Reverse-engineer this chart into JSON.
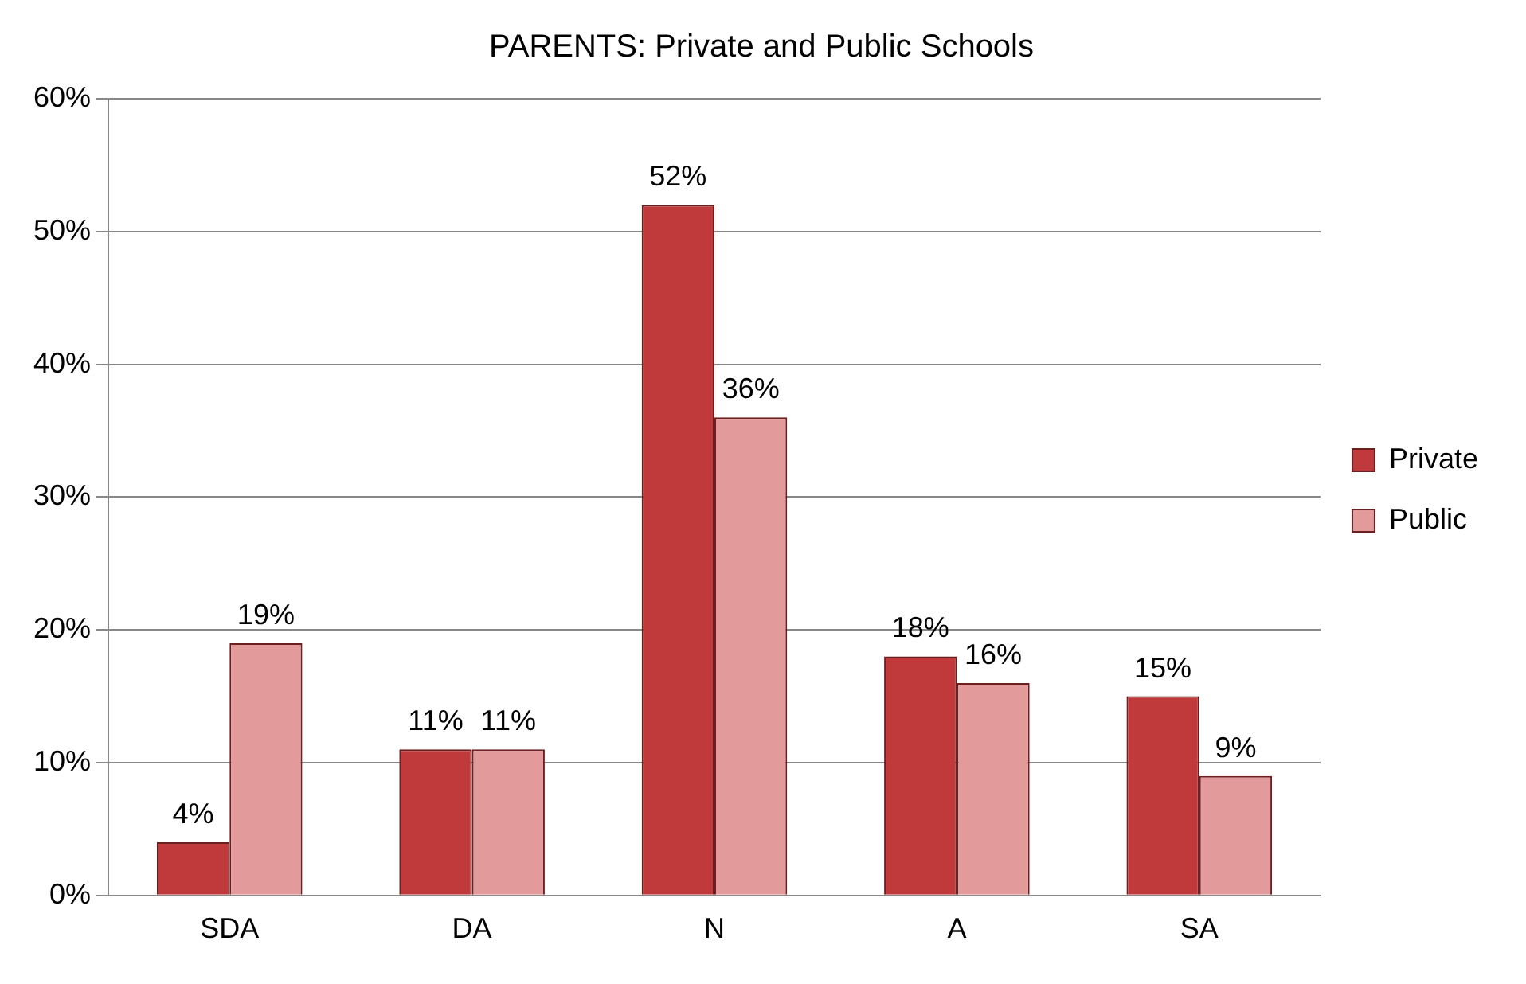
{
  "chart_data": {
    "type": "bar",
    "title": "PARENTS: Private and Public Schools",
    "categories": [
      "SDA",
      "DA",
      "N",
      "A",
      "SA"
    ],
    "series": [
      {
        "name": "Private",
        "color": "#c0393b",
        "values": [
          4,
          11,
          52,
          18,
          15
        ],
        "value_labels": [
          "4%",
          "11%",
          "52%",
          "18%",
          "15%"
        ]
      },
      {
        "name": "Public",
        "color": "#e39a9a",
        "values": [
          19,
          11,
          36,
          16,
          9
        ],
        "value_labels": [
          "19%",
          "11%",
          "36%",
          "16%",
          "9%"
        ]
      }
    ],
    "ylim": [
      0,
      60
    ],
    "yticks": [
      {
        "value": 0,
        "label": "0%"
      },
      {
        "value": 10,
        "label": "10%"
      },
      {
        "value": 20,
        "label": "20%"
      },
      {
        "value": 30,
        "label": "30%"
      },
      {
        "value": 40,
        "label": "40%"
      },
      {
        "value": 50,
        "label": "50%"
      },
      {
        "value": 60,
        "label": "60%"
      }
    ],
    "grid": "y",
    "legend": "right"
  }
}
